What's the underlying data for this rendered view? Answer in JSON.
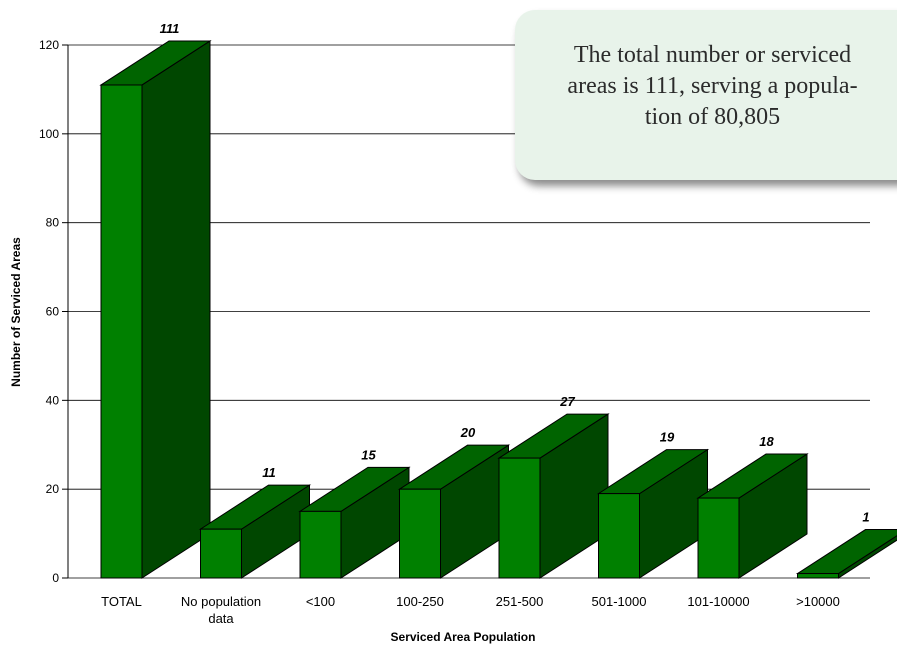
{
  "chart_data": {
    "type": "bar",
    "categories": [
      "TOTAL",
      "No population\ndata",
      "<100",
      "100-250",
      "251-500",
      "501-1000",
      "101-10000",
      ">10000"
    ],
    "values": [
      111,
      11,
      15,
      20,
      27,
      19,
      18,
      1
    ],
    "data_labels": [
      "111",
      "11",
      "15",
      "20",
      "27",
      "19",
      "18",
      "1"
    ],
    "xlabel": "Serviced Area Population",
    "ylabel": "Number of Serviced Areas",
    "ylim": [
      0,
      120
    ],
    "yticks": [
      "0",
      "20",
      "40",
      "60",
      "80",
      "100",
      "120"
    ],
    "grid": true,
    "style": "3d",
    "colors": {
      "front": "#008000",
      "side": "#004700",
      "top": "#006400",
      "outline": "#000000"
    }
  },
  "callout": {
    "text": "The total number or serviced\nareas is 111, serving a popula-\ntion of 80,805"
  }
}
